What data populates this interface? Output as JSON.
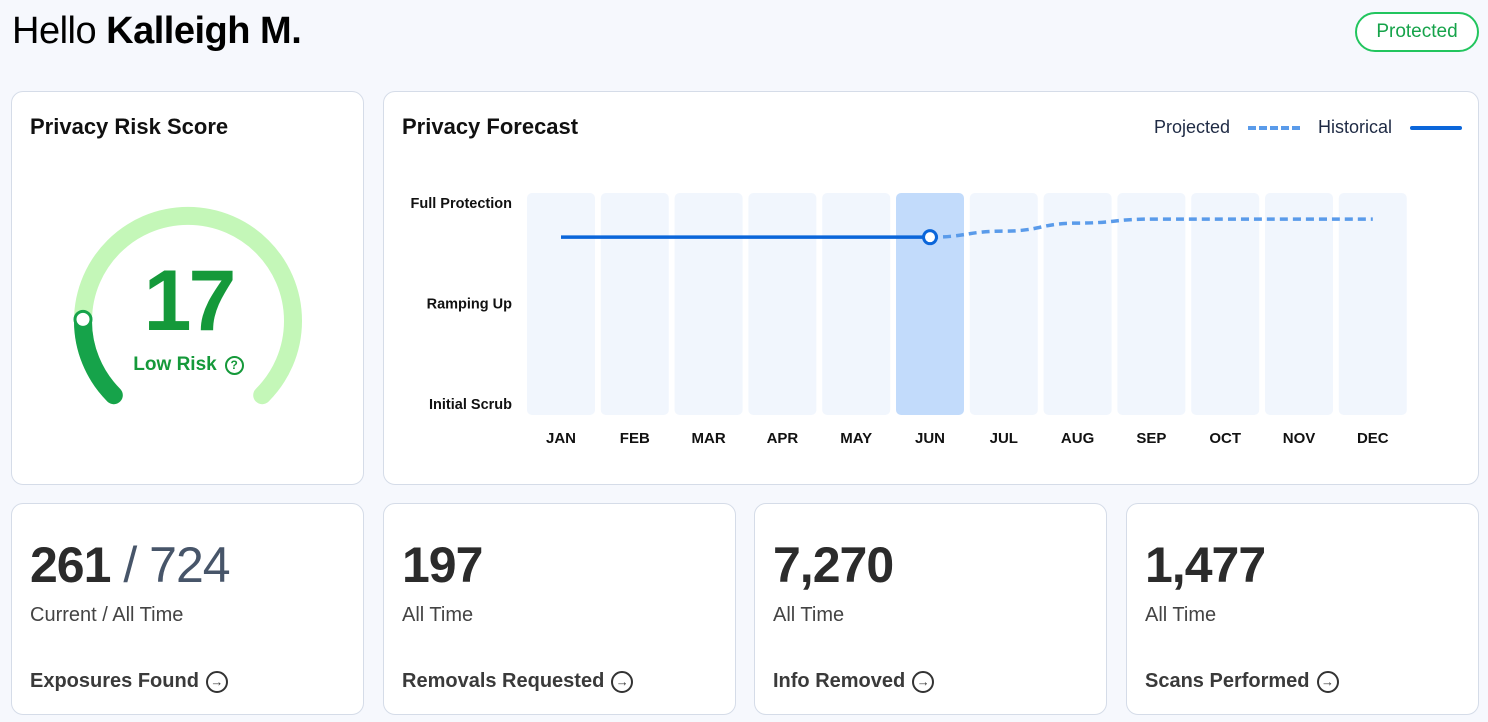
{
  "header": {
    "greeting": "Hello",
    "user_name": "Kalleigh M.",
    "status_badge": "Protected"
  },
  "risk": {
    "title": "Privacy Risk Score",
    "score": "17",
    "level_label": "Low Risk",
    "help_icon": "question-circle-icon",
    "gauge_fraction": 0.17,
    "colors": {
      "track": "#c4f7b8",
      "fill": "#16a34a"
    }
  },
  "forecast": {
    "title": "Privacy Forecast",
    "legend": {
      "projected": "Projected",
      "historical": "Historical"
    }
  },
  "chart_data": {
    "type": "line",
    "categories": [
      "JAN",
      "FEB",
      "MAR",
      "APR",
      "MAY",
      "JUN",
      "JUL",
      "AUG",
      "SEP",
      "OCT",
      "NOV",
      "DEC"
    ],
    "y_levels": [
      "Initial Scrub",
      "Ramping Up",
      "Full Protection"
    ],
    "ylim": [
      0,
      2
    ],
    "highlight_category": "JUN",
    "series": [
      {
        "name": "Historical",
        "style": "solid",
        "color": "#0b66da",
        "points": [
          [
            "JAN",
            1.66
          ],
          [
            "JUN",
            1.66
          ]
        ]
      },
      {
        "name": "Projected",
        "style": "dashed",
        "color": "#5a9bea",
        "points": [
          [
            "JUN",
            1.66
          ],
          [
            "JUL",
            1.72
          ],
          [
            "AUG",
            1.8
          ],
          [
            "SEP",
            1.84
          ],
          [
            "OCT",
            1.84
          ],
          [
            "NOV",
            1.84
          ],
          [
            "DEC",
            1.84
          ]
        ]
      }
    ]
  },
  "stats": [
    {
      "value": "261",
      "separator": "/",
      "total": "724",
      "subtitle": "Current / All Time",
      "link": "Exposures Found"
    },
    {
      "value": "197",
      "subtitle": "All Time",
      "link": "Removals Requested"
    },
    {
      "value": "7,270",
      "subtitle": "All Time",
      "link": "Info Removed"
    },
    {
      "value": "1,477",
      "subtitle": "All Time",
      "link": "Scans Performed"
    }
  ],
  "icons": {
    "link_arrow": "arrow-right-circle-icon"
  },
  "colors": {
    "accent_green": "#16a34a",
    "chart_blue": "#0b66da"
  }
}
